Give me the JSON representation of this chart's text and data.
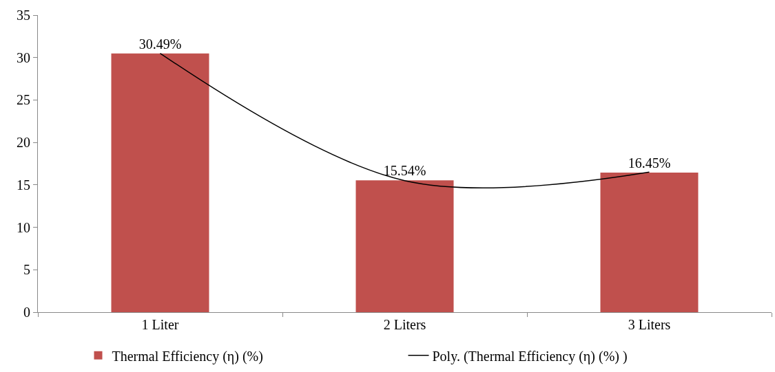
{
  "chart_data": {
    "type": "bar",
    "categories": [
      "1 Liter",
      "2 Liters",
      "3 Liters"
    ],
    "series": [
      {
        "name": "Thermal Efficiency (η) (%)",
        "color": "#c0504d",
        "values": [
          30.49,
          15.54,
          16.45
        ],
        "value_labels": [
          "30.49%",
          "15.54%",
          "16.45%"
        ]
      },
      {
        "name": "Poly. (Thermal Efficiency (η) (%) )",
        "type": "line",
        "color": "#000000",
        "x": [
          "1 Liter",
          "2 Liters",
          "3 Liters"
        ],
        "values": [
          30.5,
          15.5,
          16.5
        ]
      }
    ],
    "ylim": [
      0,
      35
    ],
    "yticks": [
      0,
      5,
      10,
      15,
      20,
      25,
      30,
      35
    ],
    "grid": false,
    "legend": "bottom",
    "marker": "none",
    "line_style": "solid"
  }
}
